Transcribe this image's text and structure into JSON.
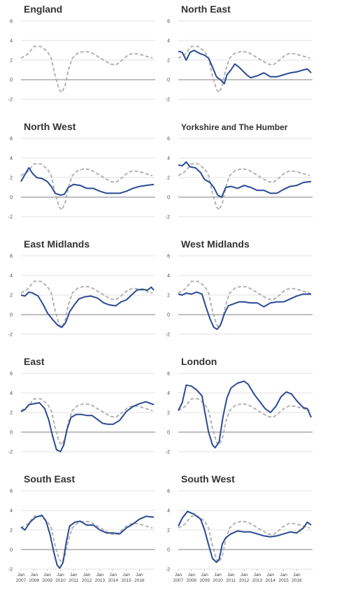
{
  "chart_data": {
    "type": "line",
    "y_ticks": [
      6,
      4,
      2,
      0,
      -2
    ],
    "ylim": [
      -2,
      6
    ],
    "xlim": [
      2007,
      2017.2
    ],
    "x_tick_labels": [
      {
        "top": "Jan",
        "bottom": "2007",
        "x": 2007
      },
      {
        "top": "Jan",
        "bottom": "2008",
        "x": 2008
      },
      {
        "top": "Jan",
        "bottom": "2009",
        "x": 2009
      },
      {
        "top": "Jan",
        "bottom": "2010",
        "x": 2010
      },
      {
        "top": "Jan",
        "bottom": "2011",
        "x": 2011
      },
      {
        "top": "Jan",
        "bottom": "2012",
        "x": 2012
      },
      {
        "top": "Jan",
        "bottom": "2013",
        "x": 2013
      },
      {
        "top": "Jan",
        "bottom": "2014",
        "x": 2014
      },
      {
        "top": "Jan",
        "bottom": "2015",
        "x": 2015
      },
      {
        "top": "Jan",
        "bottom": "2016",
        "x": 2016
      }
    ],
    "benchmark": {
      "style": "dashed",
      "color": "#b3b3b3",
      "points": [
        [
          2007,
          2.2
        ],
        [
          2007.5,
          2.6
        ],
        [
          2008,
          3.4
        ],
        [
          2008.5,
          3.4
        ],
        [
          2009,
          2.9
        ],
        [
          2009.3,
          2.2
        ],
        [
          2009.6,
          0.4
        ],
        [
          2009.9,
          -1.0
        ],
        [
          2010.1,
          -1.3
        ],
        [
          2010.35,
          -0.6
        ],
        [
          2010.6,
          1.0
        ],
        [
          2010.9,
          2.2
        ],
        [
          2011.3,
          2.7
        ],
        [
          2011.8,
          2.9
        ],
        [
          2012.3,
          2.8
        ],
        [
          2012.8,
          2.4
        ],
        [
          2013.3,
          2.0
        ],
        [
          2013.8,
          1.6
        ],
        [
          2014.2,
          1.5
        ],
        [
          2014.6,
          1.9
        ],
        [
          2015.1,
          2.5
        ],
        [
          2015.5,
          2.7
        ],
        [
          2016,
          2.6
        ],
        [
          2016.5,
          2.4
        ],
        [
          2017,
          2.2
        ]
      ]
    },
    "panels": [
      {
        "title": "England",
        "series": []
      },
      {
        "title": "North East",
        "series": [
          [
            2007,
            2.9
          ],
          [
            2007.3,
            2.8
          ],
          [
            2007.6,
            2.0
          ],
          [
            2007.9,
            2.8
          ],
          [
            2008.2,
            3.0
          ],
          [
            2008.6,
            2.7
          ],
          [
            2009,
            2.5
          ],
          [
            2009.3,
            2.2
          ],
          [
            2009.6,
            1.3
          ],
          [
            2009.9,
            0.3
          ],
          [
            2010.2,
            0.0
          ],
          [
            2010.5,
            -0.4
          ],
          [
            2010.7,
            0.5
          ],
          [
            2011,
            1.0
          ],
          [
            2011.3,
            1.6
          ],
          [
            2011.6,
            1.3
          ],
          [
            2011.9,
            0.9
          ],
          [
            2012.2,
            0.5
          ],
          [
            2012.5,
            0.2
          ],
          [
            2013,
            0.4
          ],
          [
            2013.5,
            0.7
          ],
          [
            2014,
            0.3
          ],
          [
            2014.5,
            0.3
          ],
          [
            2015,
            0.5
          ],
          [
            2015.5,
            0.7
          ],
          [
            2016,
            0.8
          ],
          [
            2016.5,
            1.0
          ],
          [
            2016.8,
            1.1
          ],
          [
            2017.1,
            0.7
          ]
        ]
      },
      {
        "title": "North West",
        "series": [
          [
            2007,
            1.6
          ],
          [
            2007.3,
            2.3
          ],
          [
            2007.6,
            3.0
          ],
          [
            2007.9,
            2.4
          ],
          [
            2008.2,
            2.0
          ],
          [
            2008.6,
            1.9
          ],
          [
            2009,
            1.6
          ],
          [
            2009.3,
            1.1
          ],
          [
            2009.6,
            0.4
          ],
          [
            2010,
            0.2
          ],
          [
            2010.3,
            0.3
          ],
          [
            2010.6,
            1.0
          ],
          [
            2011,
            1.3
          ],
          [
            2011.5,
            1.2
          ],
          [
            2012,
            0.9
          ],
          [
            2012.5,
            0.9
          ],
          [
            2013,
            0.6
          ],
          [
            2013.5,
            0.4
          ],
          [
            2014,
            0.4
          ],
          [
            2014.5,
            0.4
          ],
          [
            2015,
            0.6
          ],
          [
            2015.5,
            0.9
          ],
          [
            2016,
            1.1
          ],
          [
            2016.5,
            1.2
          ],
          [
            2017.1,
            1.3
          ]
        ]
      },
      {
        "title": "Yorkshire and The Humber",
        "series": [
          [
            2007,
            3.3
          ],
          [
            2007.3,
            3.2
          ],
          [
            2007.6,
            3.6
          ],
          [
            2007.9,
            3.1
          ],
          [
            2008.3,
            3.0
          ],
          [
            2008.7,
            2.5
          ],
          [
            2009,
            1.8
          ],
          [
            2009.4,
            1.5
          ],
          [
            2009.7,
            1.0
          ],
          [
            2010,
            0.2
          ],
          [
            2010.3,
            0.0
          ],
          [
            2010.6,
            1.0
          ],
          [
            2011,
            1.1
          ],
          [
            2011.5,
            0.9
          ],
          [
            2012,
            1.2
          ],
          [
            2012.5,
            1.0
          ],
          [
            2013,
            0.7
          ],
          [
            2013.5,
            0.7
          ],
          [
            2014,
            0.4
          ],
          [
            2014.5,
            0.4
          ],
          [
            2015,
            0.8
          ],
          [
            2015.5,
            1.1
          ],
          [
            2016,
            1.2
          ],
          [
            2016.5,
            1.5
          ],
          [
            2017.1,
            1.6
          ]
        ]
      },
      {
        "title": "East Midlands",
        "series": [
          [
            2007,
            2.0
          ],
          [
            2007.3,
            1.9
          ],
          [
            2007.6,
            2.3
          ],
          [
            2007.9,
            2.2
          ],
          [
            2008.3,
            1.9
          ],
          [
            2008.7,
            1.0
          ],
          [
            2009,
            0.2
          ],
          [
            2009.4,
            -0.5
          ],
          [
            2009.8,
            -1.1
          ],
          [
            2010.1,
            -1.3
          ],
          [
            2010.4,
            -0.8
          ],
          [
            2010.7,
            0.3
          ],
          [
            2011,
            0.9
          ],
          [
            2011.4,
            1.6
          ],
          [
            2011.8,
            1.8
          ],
          [
            2012.3,
            1.9
          ],
          [
            2012.8,
            1.7
          ],
          [
            2013.3,
            1.2
          ],
          [
            2013.7,
            1.0
          ],
          [
            2014.2,
            0.9
          ],
          [
            2014.6,
            1.3
          ],
          [
            2015,
            1.5
          ],
          [
            2015.4,
            2.0
          ],
          [
            2015.8,
            2.5
          ],
          [
            2016.2,
            2.6
          ],
          [
            2016.6,
            2.5
          ],
          [
            2016.9,
            2.8
          ],
          [
            2017.1,
            2.5
          ]
        ]
      },
      {
        "title": "West Midlands",
        "series": [
          [
            2007,
            2.1
          ],
          [
            2007.3,
            2.0
          ],
          [
            2007.6,
            2.2
          ],
          [
            2008,
            2.1
          ],
          [
            2008.4,
            2.3
          ],
          [
            2008.8,
            2.1
          ],
          [
            2009.1,
            0.8
          ],
          [
            2009.4,
            -0.4
          ],
          [
            2009.7,
            -1.3
          ],
          [
            2009.95,
            -1.5
          ],
          [
            2010.2,
            -1.1
          ],
          [
            2010.5,
            0.1
          ],
          [
            2010.8,
            0.9
          ],
          [
            2011.2,
            1.1
          ],
          [
            2011.6,
            1.3
          ],
          [
            2012,
            1.3
          ],
          [
            2012.5,
            1.2
          ],
          [
            2013,
            1.2
          ],
          [
            2013.5,
            0.8
          ],
          [
            2014,
            1.2
          ],
          [
            2014.5,
            1.3
          ],
          [
            2015,
            1.3
          ],
          [
            2015.5,
            1.6
          ],
          [
            2016,
            1.9
          ],
          [
            2016.5,
            2.1
          ],
          [
            2017.1,
            2.1
          ]
        ]
      },
      {
        "title": "East",
        "series": [
          [
            2007,
            2.1
          ],
          [
            2007.3,
            2.3
          ],
          [
            2007.6,
            2.8
          ],
          [
            2008,
            2.9
          ],
          [
            2008.4,
            3.0
          ],
          [
            2008.8,
            2.4
          ],
          [
            2009.1,
            1.3
          ],
          [
            2009.4,
            -0.4
          ],
          [
            2009.7,
            -1.8
          ],
          [
            2010,
            -2.0
          ],
          [
            2010.25,
            -1.3
          ],
          [
            2010.5,
            0.3
          ],
          [
            2010.8,
            1.5
          ],
          [
            2011.2,
            1.8
          ],
          [
            2011.6,
            1.8
          ],
          [
            2012,
            1.7
          ],
          [
            2012.4,
            1.7
          ],
          [
            2012.8,
            1.3
          ],
          [
            2013.2,
            0.9
          ],
          [
            2013.6,
            0.8
          ],
          [
            2014,
            0.8
          ],
          [
            2014.5,
            1.2
          ],
          [
            2015,
            2.1
          ],
          [
            2015.5,
            2.6
          ],
          [
            2016,
            2.9
          ],
          [
            2016.5,
            3.1
          ],
          [
            2017.1,
            2.8
          ]
        ]
      },
      {
        "title": "London",
        "series": [
          [
            2007,
            2.2
          ],
          [
            2007.3,
            3.0
          ],
          [
            2007.6,
            4.8
          ],
          [
            2008,
            4.7
          ],
          [
            2008.4,
            4.3
          ],
          [
            2008.8,
            3.7
          ],
          [
            2009,
            2.2
          ],
          [
            2009.3,
            0.0
          ],
          [
            2009.6,
            -1.3
          ],
          [
            2009.8,
            -1.6
          ],
          [
            2010.1,
            -1.0
          ],
          [
            2010.4,
            1.6
          ],
          [
            2010.7,
            3.5
          ],
          [
            2011,
            4.5
          ],
          [
            2011.5,
            5.0
          ],
          [
            2012,
            5.2
          ],
          [
            2012.3,
            4.9
          ],
          [
            2012.8,
            3.8
          ],
          [
            2013.2,
            3.1
          ],
          [
            2013.6,
            2.4
          ],
          [
            2014,
            2.0
          ],
          [
            2014.4,
            2.6
          ],
          [
            2014.8,
            3.6
          ],
          [
            2015.2,
            4.1
          ],
          [
            2015.6,
            3.9
          ],
          [
            2016,
            3.2
          ],
          [
            2016.5,
            2.5
          ],
          [
            2016.8,
            2.4
          ],
          [
            2017.1,
            1.5
          ]
        ]
      },
      {
        "title": "South East",
        "series": [
          [
            2007,
            2.3
          ],
          [
            2007.3,
            2.0
          ],
          [
            2007.7,
            2.8
          ],
          [
            2008.1,
            3.3
          ],
          [
            2008.6,
            3.5
          ],
          [
            2008.9,
            2.9
          ],
          [
            2009.2,
            1.6
          ],
          [
            2009.5,
            -0.3
          ],
          [
            2009.75,
            -1.6
          ],
          [
            2009.95,
            -1.9
          ],
          [
            2010.2,
            -1.3
          ],
          [
            2010.45,
            0.8
          ],
          [
            2010.7,
            2.4
          ],
          [
            2011.1,
            2.8
          ],
          [
            2011.5,
            2.9
          ],
          [
            2012,
            2.5
          ],
          [
            2012.5,
            2.5
          ],
          [
            2013,
            2.0
          ],
          [
            2013.5,
            1.7
          ],
          [
            2014,
            1.7
          ],
          [
            2014.5,
            1.6
          ],
          [
            2015,
            2.2
          ],
          [
            2015.5,
            2.6
          ],
          [
            2016,
            3.1
          ],
          [
            2016.5,
            3.4
          ],
          [
            2017.1,
            3.3
          ]
        ]
      },
      {
        "title": "South West",
        "series": [
          [
            2007,
            2.4
          ],
          [
            2007.3,
            3.2
          ],
          [
            2007.7,
            3.9
          ],
          [
            2008.2,
            3.6
          ],
          [
            2008.7,
            3.1
          ],
          [
            2009,
            2.0
          ],
          [
            2009.3,
            0.5
          ],
          [
            2009.6,
            -0.9
          ],
          [
            2009.9,
            -1.3
          ],
          [
            2010.1,
            -1.0
          ],
          [
            2010.35,
            0.6
          ],
          [
            2010.6,
            1.2
          ],
          [
            2011,
            1.6
          ],
          [
            2011.5,
            1.9
          ],
          [
            2012,
            1.8
          ],
          [
            2012.5,
            1.8
          ],
          [
            2013,
            1.6
          ],
          [
            2013.5,
            1.4
          ],
          [
            2014,
            1.3
          ],
          [
            2014.5,
            1.4
          ],
          [
            2015,
            1.6
          ],
          [
            2015.5,
            1.8
          ],
          [
            2016,
            1.7
          ],
          [
            2016.5,
            2.2
          ],
          [
            2016.8,
            2.8
          ],
          [
            2017.1,
            2.5
          ]
        ]
      }
    ]
  }
}
